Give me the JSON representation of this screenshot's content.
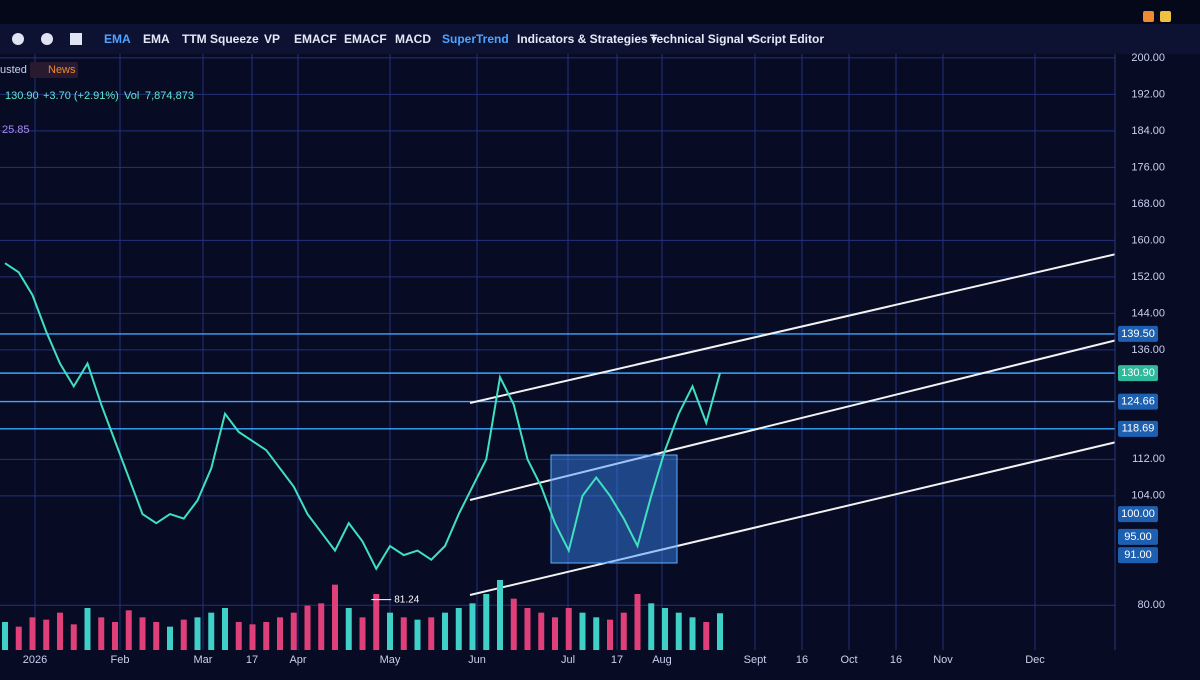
{
  "toolbar": {
    "items": [
      "EMA",
      "EMA",
      "TTM Squeeze",
      "VP",
      "EMACF",
      "EMACF",
      "MACD",
      "SuperTrend",
      "Indicators & Strategies ▾",
      "Technical Signal ▾",
      "Script Editor"
    ],
    "active": [
      0,
      7
    ]
  },
  "legend": {
    "adjusted": "usted",
    "news": "News",
    "last": "130.90",
    "change": "+3.70 (+2.91%)",
    "volume_label": "Vol",
    "volume": "7,874,873",
    "study": "25.85"
  },
  "chart_data": {
    "type": "line",
    "color": "#3fe0c0",
    "values": [
      155,
      153,
      148,
      140,
      133,
      128,
      133,
      124,
      116,
      108,
      100,
      98,
      100,
      99,
      103,
      110,
      122,
      118,
      116,
      114,
      110,
      106,
      100,
      96,
      92,
      98,
      94,
      88,
      93,
      91,
      92,
      90,
      93,
      100,
      106,
      112,
      130,
      124,
      112,
      106,
      98,
      92,
      104,
      108,
      104,
      99,
      93,
      104,
      114,
      122,
      128,
      120,
      130.9
    ],
    "volumes": [
      6000000,
      5000000,
      7000000,
      6500000,
      8000000,
      5500000,
      9000000,
      7000000,
      6000000,
      8500000,
      7000000,
      6000000,
      5000000,
      6500000,
      7000000,
      8000000,
      9000000,
      6000000,
      5500000,
      6000000,
      7000000,
      8000000,
      9500000,
      10000000,
      14000000,
      9000000,
      7000000,
      12000000,
      8000000,
      7000000,
      6500000,
      7000000,
      8000000,
      9000000,
      10000000,
      12000000,
      15000000,
      11000000,
      9000000,
      8000000,
      7000000,
      9000000,
      8000000,
      7000000,
      6500000,
      8000000,
      12000000,
      10000000,
      9000000,
      8000000,
      7000000,
      6000000,
      7874873
    ],
    "volume_color": "#3fd0c8",
    "down_color": "#e0407a",
    "ylim": [
      70.2,
      212.7
    ],
    "yticks": [
      {
        "value": 200,
        "label": "200.00"
      },
      {
        "value": 192,
        "label": "192.00"
      },
      {
        "value": 184,
        "label": "184.00"
      },
      {
        "value": 176,
        "label": "176.00"
      },
      {
        "value": 168,
        "label": "168.00"
      },
      {
        "value": 160,
        "label": "160.00"
      },
      {
        "value": 152,
        "label": "152.00"
      },
      {
        "value": 144,
        "label": "144.00"
      },
      {
        "value": 136,
        "label": "136.00"
      },
      {
        "value": 112,
        "label": "112.00"
      },
      {
        "value": 104,
        "label": "104.00"
      },
      {
        "value": 80,
        "label": "80.00"
      }
    ],
    "price_tags": [
      {
        "value": 139.5,
        "label": "139.50"
      },
      {
        "value": 130.9,
        "label": "130.90"
      },
      {
        "value": 124.66,
        "label": "124.66"
      },
      {
        "value": 118.69,
        "label": "118.69"
      },
      {
        "value": 100,
        "label": "100.00"
      },
      {
        "value": 95,
        "label": "95.00"
      },
      {
        "value": 91,
        "label": "91.00"
      }
    ],
    "low": 81.24,
    "x_labels": [
      "2026",
      "Feb",
      "Mar",
      "17",
      "Apr",
      "May",
      "Jun",
      "Jul",
      "17",
      "Aug",
      "Sept",
      "16",
      "Oct",
      "16",
      "Nov",
      "Dec"
    ],
    "grid": true
  }
}
